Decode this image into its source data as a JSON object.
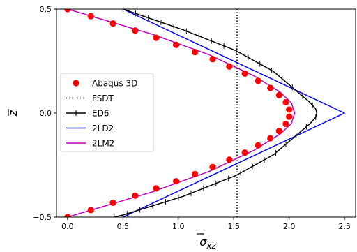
{
  "chart_data": {
    "type": "line",
    "xlabel": "σxz",
    "ylabel": "z",
    "xlim": [
      -0.1,
      2.6
    ],
    "ylim": [
      -0.5,
      0.5
    ],
    "xticks": [
      "0.0",
      "0.5",
      "1.0",
      "1.5",
      "2.0",
      "2.5"
    ],
    "yticks": [
      "−0.5",
      "0.0",
      "0.5"
    ],
    "grid": false,
    "legend_position": "center-left",
    "series": [
      {
        "name": "Abaqus 3D",
        "kind": "markers",
        "color": "#ff0000",
        "x": [
          0.0,
          0.21,
          0.41,
          0.61,
          0.8,
          0.98,
          1.15,
          1.31,
          1.46,
          1.6,
          1.72,
          1.83,
          1.91,
          1.97,
          2.0,
          2.0,
          1.97,
          1.91,
          1.83,
          1.72,
          1.6,
          1.46,
          1.31,
          1.15,
          0.98,
          0.8,
          0.61,
          0.41,
          0.21,
          0.0
        ],
        "y": [
          0.5,
          0.466,
          0.431,
          0.397,
          0.362,
          0.328,
          0.293,
          0.259,
          0.224,
          0.19,
          0.155,
          0.121,
          0.086,
          0.052,
          0.017,
          -0.017,
          -0.052,
          -0.086,
          -0.121,
          -0.155,
          -0.19,
          -0.224,
          -0.259,
          -0.293,
          -0.328,
          -0.362,
          -0.397,
          -0.431,
          -0.466,
          -0.5
        ]
      },
      {
        "name": "FSDT",
        "kind": "dotted",
        "color": "#000000",
        "x": [
          1.53,
          1.53
        ],
        "y": [
          -0.5,
          0.5
        ]
      },
      {
        "name": "ED6",
        "kind": "line-ticks",
        "color": "#000000",
        "x": [
          0.5,
          1.045,
          1.52,
          1.86,
          2.08,
          2.19,
          2.24,
          2.25,
          2.24,
          2.19,
          2.08,
          1.86,
          1.52,
          1.045,
          0.5,
          0.42
        ],
        "y": [
          0.5,
          0.4,
          0.3,
          0.2,
          0.1,
          0.05,
          0.02,
          0.0,
          -0.02,
          -0.05,
          -0.1,
          -0.2,
          -0.3,
          -0.4,
          -0.49,
          -0.5
        ]
      },
      {
        "name": "2LD2",
        "kind": "line",
        "color": "#0000ff",
        "x": [
          0.5,
          2.5,
          0.5
        ],
        "y": [
          0.5,
          0.0,
          -0.5
        ]
      },
      {
        "name": "2LM2",
        "kind": "line",
        "color": "#bf00bf",
        "x": [
          0.0,
          0.76,
          1.28,
          1.68,
          1.92,
          2.02,
          2.05,
          2.02,
          1.92,
          1.68,
          1.28,
          0.76,
          0.0
        ],
        "y": [
          0.5,
          0.38,
          0.28,
          0.18,
          0.1,
          0.05,
          0.0,
          -0.05,
          -0.1,
          -0.18,
          -0.28,
          -0.38,
          -0.5
        ]
      }
    ]
  }
}
